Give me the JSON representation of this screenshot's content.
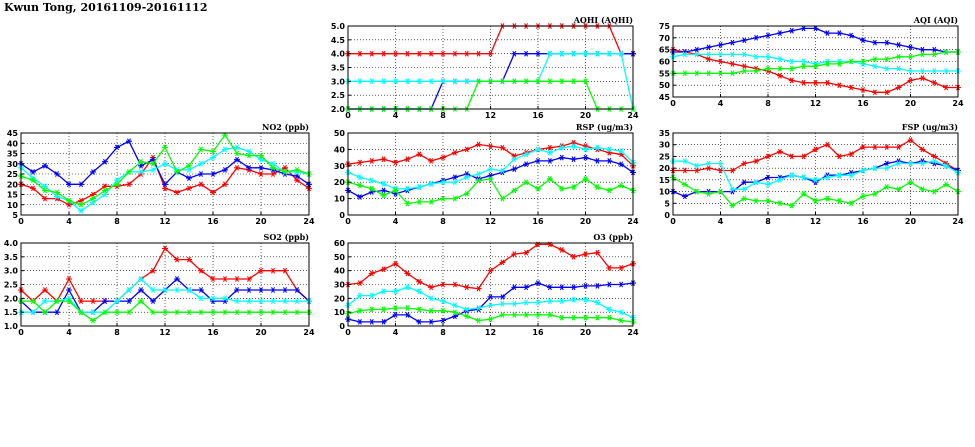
{
  "page_title": "Kwun Tong, 20161109-20161112",
  "series_colors": {
    "red": "#ff0000",
    "blue": "#0000ff",
    "cyan": "#00ffff",
    "green": "#00ff00"
  },
  "chart_data": [
    {
      "id": "aqhi",
      "type": "line",
      "title": "AQHI (AQHI)",
      "xlim": [
        0,
        24
      ],
      "xticks": [
        0,
        4,
        8,
        12,
        16,
        20,
        24
      ],
      "ylim": [
        2.0,
        5.0
      ],
      "yticks": [
        "2.0",
        "2.5",
        "3.0",
        "3.5",
        "4.0",
        "4.5",
        "5.0"
      ],
      "grid": true,
      "series": [
        {
          "color": "red",
          "values": [
            4,
            4,
            4,
            4,
            4,
            4,
            4,
            4,
            4,
            4,
            4,
            4,
            4,
            5,
            5,
            5,
            5,
            5,
            5,
            5,
            5,
            5,
            5,
            4,
            4
          ]
        },
        {
          "color": "blue",
          "values": [
            2,
            2,
            2,
            2,
            2,
            2,
            2,
            2,
            3,
            3,
            3,
            3,
            3,
            3,
            4,
            4,
            4,
            4,
            4,
            4,
            4,
            4,
            4,
            4,
            4
          ]
        },
        {
          "color": "cyan",
          "values": [
            3,
            3,
            3,
            3,
            3,
            3,
            3,
            3,
            3,
            3,
            3,
            3,
            3,
            3,
            3,
            3,
            3,
            4,
            4,
            4,
            4,
            4,
            4,
            4,
            2
          ]
        },
        {
          "color": "green",
          "values": [
            2,
            2,
            2,
            2,
            2,
            2,
            2,
            2,
            2,
            2,
            2,
            3,
            3,
            3,
            3,
            3,
            3,
            3,
            3,
            3,
            3,
            2,
            2,
            2,
            2
          ]
        }
      ]
    },
    {
      "id": "aqi",
      "type": "line",
      "title": "AQI (AQI)",
      "xlim": [
        0,
        24
      ],
      "xticks": [
        0,
        4,
        8,
        12,
        16,
        20,
        24
      ],
      "ylim": [
        45,
        75
      ],
      "yticks": [
        "45",
        "50",
        "55",
        "60",
        "65",
        "70",
        "75"
      ],
      "grid": true,
      "series": [
        {
          "color": "red",
          "values": [
            65,
            64,
            63,
            61,
            60,
            59,
            58,
            57,
            56,
            54,
            52,
            51,
            51,
            51,
            50,
            49,
            48,
            47,
            47,
            49,
            52,
            53,
            51,
            49,
            49
          ]
        },
        {
          "color": "blue",
          "values": [
            64,
            64,
            65,
            66,
            67,
            68,
            69,
            70,
            71,
            72,
            73,
            74,
            74,
            72,
            72,
            71,
            69,
            68,
            68,
            67,
            66,
            65,
            65,
            64,
            64
          ]
        },
        {
          "color": "cyan",
          "values": [
            62,
            63,
            63,
            63,
            63,
            63,
            63,
            62,
            62,
            61,
            60,
            60,
            59,
            60,
            60,
            60,
            59,
            58,
            57,
            57,
            56,
            56,
            56,
            56,
            56
          ]
        },
        {
          "color": "green",
          "values": [
            55,
            55,
            55,
            55,
            55,
            55,
            56,
            56,
            57,
            57,
            57,
            58,
            58,
            59,
            59,
            60,
            60,
            61,
            61,
            62,
            62,
            63,
            63,
            64,
            64
          ]
        }
      ]
    },
    {
      "id": "no2",
      "type": "line",
      "title": "NO2 (ppb)",
      "xlim": [
        0,
        24
      ],
      "xticks": [
        0,
        4,
        8,
        12,
        16,
        20,
        24
      ],
      "ylim": [
        5,
        45
      ],
      "yticks": [
        "5",
        "10",
        "15",
        "20",
        "25",
        "30",
        "35",
        "40",
        "45"
      ],
      "grid": true,
      "series": [
        {
          "color": "red",
          "values": [
            20,
            18,
            13,
            13,
            10,
            12,
            15,
            19,
            19,
            20,
            25,
            33,
            18,
            16,
            18,
            20,
            16,
            20,
            28,
            27,
            25,
            25,
            28,
            22,
            18
          ]
        },
        {
          "color": "blue",
          "values": [
            30,
            26,
            29,
            25,
            20,
            20,
            26,
            31,
            38,
            41,
            29,
            32,
            20,
            26,
            23,
            25,
            25,
            27,
            32,
            28,
            28,
            27,
            25,
            24,
            20
          ]
        },
        {
          "color": "cyan",
          "values": [
            28,
            23,
            19,
            14,
            12,
            7,
            11,
            15,
            22,
            26,
            26,
            27,
            30,
            27,
            27,
            30,
            33,
            37,
            38,
            36,
            32,
            30,
            26,
            26,
            25
          ]
        },
        {
          "color": "green",
          "values": [
            24,
            22,
            17,
            16,
            12,
            10,
            13,
            17,
            20,
            26,
            31,
            30,
            38,
            26,
            29,
            37,
            36,
            44,
            35,
            34,
            34,
            28,
            26,
            27,
            25
          ]
        }
      ]
    },
    {
      "id": "rsp",
      "type": "line",
      "title": "RSP (ug/m3)",
      "xlim": [
        0,
        24
      ],
      "xticks": [
        0,
        4,
        8,
        12,
        16,
        20,
        24
      ],
      "ylim": [
        0,
        50
      ],
      "yticks": [
        "0",
        "10",
        "20",
        "30",
        "40",
        "50"
      ],
      "grid": true,
      "series": [
        {
          "color": "red",
          "values": [
            31,
            32,
            33,
            34,
            32,
            34,
            37,
            33,
            35,
            38,
            40,
            43,
            42,
            41,
            36,
            38,
            40,
            41,
            42,
            44,
            42,
            40,
            38,
            37,
            30
          ]
        },
        {
          "color": "blue",
          "values": [
            15,
            11,
            14,
            15,
            13,
            15,
            17,
            19,
            21,
            23,
            25,
            22,
            24,
            26,
            28,
            31,
            33,
            33,
            35,
            34,
            35,
            33,
            33,
            31,
            26
          ]
        },
        {
          "color": "cyan",
          "values": [
            26,
            23,
            21,
            19,
            16,
            16,
            17,
            19,
            20,
            20,
            23,
            25,
            28,
            27,
            34,
            37,
            40,
            38,
            41,
            42,
            40,
            41,
            40,
            39,
            32
          ]
        },
        {
          "color": "green",
          "values": [
            20,
            18,
            16,
            12,
            15,
            7,
            8,
            8,
            10,
            10,
            13,
            21,
            22,
            10,
            15,
            20,
            16,
            22,
            16,
            17,
            22,
            17,
            15,
            18,
            15
          ]
        }
      ]
    },
    {
      "id": "fsp",
      "type": "line",
      "title": "FSP (ug/m3)",
      "xlim": [
        0,
        24
      ],
      "xticks": [
        0,
        4,
        8,
        12,
        16,
        20,
        24
      ],
      "ylim": [
        0,
        35
      ],
      "yticks": [
        "0",
        "5",
        "10",
        "15",
        "20",
        "25",
        "30",
        "35"
      ],
      "grid": true,
      "series": [
        {
          "color": "red",
          "values": [
            19,
            19,
            19,
            20,
            19,
            19,
            22,
            23,
            25,
            27,
            25,
            25,
            28,
            30,
            25,
            26,
            29,
            29,
            29,
            29,
            32,
            28,
            25,
            22,
            19
          ]
        },
        {
          "color": "blue",
          "values": [
            10,
            8,
            10,
            10,
            10,
            10,
            14,
            14,
            16,
            16,
            17,
            16,
            14,
            17,
            17,
            18,
            19,
            20,
            22,
            23,
            22,
            23,
            22,
            21,
            19
          ]
        },
        {
          "color": "cyan",
          "values": [
            23,
            23,
            21,
            22,
            22,
            11,
            11,
            14,
            13,
            15,
            17,
            16,
            15,
            16,
            17,
            17,
            19,
            20,
            20,
            22,
            22,
            22,
            23,
            21,
            18
          ]
        },
        {
          "color": "green",
          "values": [
            16,
            13,
            10,
            9,
            10,
            4,
            7,
            6,
            6,
            5,
            4,
            9,
            6,
            7,
            6,
            5,
            8,
            9,
            12,
            11,
            14,
            11,
            10,
            13,
            10
          ]
        }
      ]
    },
    {
      "id": "so2",
      "type": "line",
      "title": "SO2 (ppb)",
      "xlim": [
        0,
        24
      ],
      "xticks": [
        0,
        4,
        8,
        12,
        16,
        20,
        24
      ],
      "ylim": [
        1.0,
        4.0
      ],
      "yticks": [
        "1.0",
        "1.5",
        "2.0",
        "2.5",
        "3.0",
        "3.5",
        "4.0"
      ],
      "grid": true,
      "series": [
        {
          "color": "red",
          "values": [
            2.3,
            1.9,
            2.3,
            1.9,
            2.7,
            1.9,
            1.9,
            1.9,
            1.9,
            2.3,
            2.7,
            3.0,
            3.8,
            3.4,
            3.4,
            3.0,
            2.7,
            2.7,
            2.7,
            2.7,
            3.0,
            3.0,
            3.0,
            2.3,
            1.9
          ]
        },
        {
          "color": "blue",
          "values": [
            1.9,
            1.5,
            1.5,
            1.5,
            2.3,
            1.5,
            1.5,
            1.9,
            1.9,
            1.9,
            2.3,
            1.9,
            2.3,
            2.7,
            2.3,
            2.3,
            1.9,
            1.9,
            2.3,
            2.3,
            2.3,
            2.3,
            2.3,
            2.3,
            1.9
          ]
        },
        {
          "color": "cyan",
          "values": [
            1.5,
            1.5,
            1.9,
            1.9,
            2.0,
            1.5,
            1.5,
            1.5,
            1.9,
            2.3,
            2.7,
            2.3,
            2.3,
            2.3,
            2.3,
            2.0,
            2.0,
            2.0,
            1.9,
            1.9,
            1.9,
            1.9,
            1.9,
            1.9,
            1.9
          ]
        },
        {
          "color": "green",
          "values": [
            1.9,
            1.9,
            1.5,
            1.9,
            1.9,
            1.5,
            1.2,
            1.5,
            1.5,
            1.5,
            1.9,
            1.5,
            1.5,
            1.5,
            1.5,
            1.5,
            1.5,
            1.5,
            1.5,
            1.5,
            1.5,
            1.5,
            1.5,
            1.5,
            1.5
          ]
        }
      ]
    },
    {
      "id": "o3",
      "type": "line",
      "title": "O3 (ppb)",
      "xlim": [
        0,
        24
      ],
      "xticks": [
        0,
        4,
        8,
        12,
        16,
        20,
        24
      ],
      "ylim": [
        0,
        60
      ],
      "yticks": [
        "0",
        "10",
        "20",
        "30",
        "40",
        "50",
        "60"
      ],
      "grid": true,
      "series": [
        {
          "color": "red",
          "values": [
            30,
            31,
            38,
            41,
            45,
            38,
            32,
            28,
            30,
            30,
            28,
            27,
            40,
            46,
            52,
            53,
            59,
            59,
            55,
            50,
            52,
            53,
            42,
            42,
            45
          ]
        },
        {
          "color": "blue",
          "values": [
            5,
            3,
            3,
            3,
            8,
            8,
            3,
            3,
            4,
            7,
            11,
            12,
            21,
            21,
            28,
            28,
            31,
            28,
            28,
            28,
            29,
            29,
            30,
            30,
            31
          ]
        },
        {
          "color": "cyan",
          "values": [
            15,
            22,
            22,
            25,
            25,
            28,
            25,
            20,
            18,
            15,
            12,
            13,
            15,
            16,
            16,
            17,
            17,
            18,
            18,
            19,
            19,
            17,
            12,
            10,
            6
          ]
        },
        {
          "color": "green",
          "values": [
            9,
            11,
            12,
            12,
            13,
            13,
            12,
            11,
            11,
            10,
            7,
            4,
            5,
            8,
            8,
            8,
            8,
            8,
            6,
            6,
            6,
            6,
            6,
            4,
            3
          ]
        }
      ]
    }
  ]
}
